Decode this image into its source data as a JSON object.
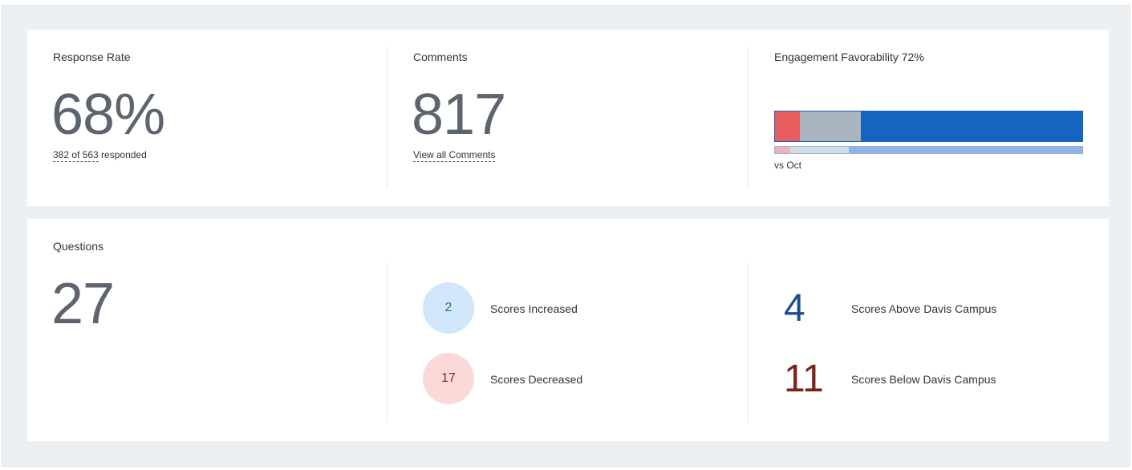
{
  "summary": {
    "response_rate": {
      "title": "Response Rate",
      "value": "68%",
      "detail_link": "382 of 563",
      "detail_suffix": " responded"
    },
    "comments": {
      "title": "Comments",
      "value": "817",
      "link": "View all Comments"
    },
    "engagement": {
      "title": "Engagement Favorability 72%",
      "current_segments": [
        {
          "label": "unfavorable",
          "fraction": 0.08,
          "color": "#e85d5d"
        },
        {
          "label": "neutral",
          "fraction": 0.2,
          "color": "#aab4bf"
        },
        {
          "label": "favorable",
          "fraction": 0.72,
          "color": "#1565c0"
        }
      ],
      "previous_segments": [
        {
          "label": "unfavorable",
          "fraction": 0.05,
          "color": "#f2b2b2"
        },
        {
          "label": "neutral",
          "fraction": 0.19,
          "color": "#d6dce2"
        },
        {
          "label": "favorable",
          "fraction": 0.76,
          "color": "#90b4df"
        }
      ],
      "comparison_label": "vs Oct"
    }
  },
  "questions": {
    "title": "Questions",
    "count": "27",
    "increased": {
      "value": "2",
      "label": "Scores Increased"
    },
    "decreased": {
      "value": "17",
      "label": "Scores Decreased"
    },
    "above": {
      "value": "4",
      "label": "Scores Above Davis Campus",
      "color": "#1b4f8a"
    },
    "below": {
      "value": "11",
      "label": "Scores Below Davis Campus",
      "color": "#7a2419"
    }
  }
}
